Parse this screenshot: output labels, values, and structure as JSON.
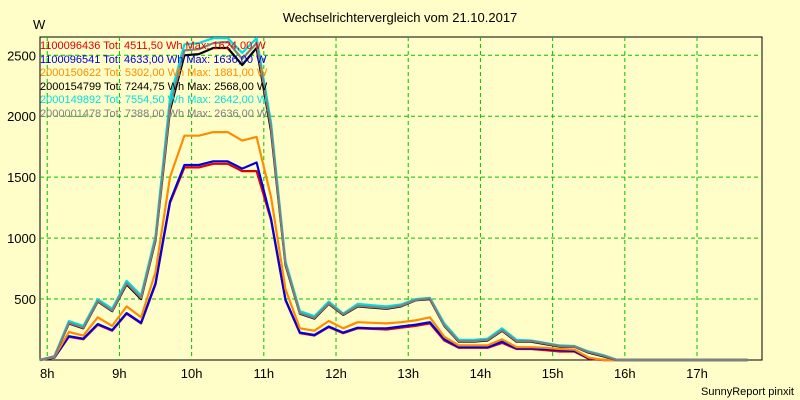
{
  "chart_data": {
    "type": "line",
    "title": "Wechselrichtervergleich vom 21.10.2017",
    "ylabel": "W",
    "xlabel": "",
    "ylim": [
      0,
      2650
    ],
    "xlim": [
      7.9,
      17.9
    ],
    "y_ticks": [
      500,
      1000,
      1500,
      2000,
      2500
    ],
    "x_ticks": [
      8,
      9,
      10,
      11,
      12,
      13,
      14,
      15,
      16,
      17
    ],
    "x_tick_labels": [
      "8h",
      "9h",
      "10h",
      "11h",
      "12h",
      "13h",
      "14h",
      "15h",
      "16h",
      "17h"
    ],
    "grid": true,
    "legend_position": "top-left",
    "x": [
      7.9,
      8.1,
      8.3,
      8.5,
      8.7,
      8.9,
      9.1,
      9.3,
      9.5,
      9.7,
      9.9,
      10.1,
      10.3,
      10.5,
      10.7,
      10.9,
      11.1,
      11.3,
      11.5,
      11.7,
      11.9,
      12.1,
      12.3,
      12.5,
      12.7,
      12.9,
      13.1,
      13.3,
      13.5,
      13.7,
      13.9,
      14.1,
      14.3,
      14.5,
      14.7,
      14.9,
      15.1,
      15.3,
      15.5,
      15.7,
      15.9,
      16.1,
      16.3,
      16.5,
      16.7,
      16.9,
      17.1,
      17.3,
      17.5,
      17.7
    ],
    "series": [
      {
        "name": "1100096436",
        "label": "1100096436 Tot: 4511,50 Wh Max: 1624,00 W",
        "color": "#e00000",
        "values": [
          0,
          20,
          190,
          170,
          290,
          240,
          380,
          300,
          620,
          1290,
          1580,
          1580,
          1610,
          1610,
          1550,
          1550,
          1150,
          490,
          220,
          200,
          270,
          220,
          260,
          255,
          250,
          265,
          280,
          300,
          160,
          100,
          100,
          100,
          140,
          90,
          90,
          80,
          70,
          70,
          10,
          0,
          0,
          0,
          0,
          0,
          0,
          0,
          0,
          0,
          0,
          0
        ]
      },
      {
        "name": "1100096541",
        "label": "1100096541 Tot: 4633,00 Wh Max: 1636,00 W",
        "color": "#0000e0",
        "values": [
          0,
          20,
          195,
          175,
          295,
          245,
          385,
          305,
          630,
          1300,
          1600,
          1600,
          1630,
          1630,
          1570,
          1620,
          1160,
          495,
          225,
          205,
          275,
          225,
          265,
          260,
          260,
          275,
          290,
          310,
          170,
          105,
          105,
          105,
          150,
          95,
          95,
          90,
          80,
          75,
          15,
          0,
          0,
          0,
          0,
          0,
          0,
          0,
          0,
          0,
          0,
          0
        ]
      },
      {
        "name": "2000150622",
        "label": "2000150622 Tot: 5302,00 Wh Max: 1881,00 W",
        "color": "#ff8c00",
        "values": [
          0,
          25,
          230,
          200,
          350,
          280,
          440,
          350,
          720,
          1500,
          1840,
          1840,
          1870,
          1870,
          1800,
          1830,
          1340,
          580,
          260,
          240,
          320,
          260,
          310,
          305,
          300,
          310,
          325,
          350,
          190,
          120,
          120,
          120,
          170,
          105,
          105,
          100,
          90,
          85,
          20,
          0,
          0,
          0,
          0,
          0,
          0,
          0,
          0,
          0,
          0,
          0
        ]
      },
      {
        "name": "2000154799",
        "label": "2000154799 Tot: 7244,75 Wh Max: 2568,00 W",
        "color": "#000000",
        "values": [
          0,
          30,
          300,
          260,
          480,
          400,
          620,
          500,
          980,
          2050,
          2500,
          2510,
          2560,
          2560,
          2420,
          2560,
          1880,
          780,
          380,
          340,
          460,
          370,
          440,
          430,
          420,
          440,
          490,
          500,
          280,
          150,
          150,
          160,
          240,
          150,
          150,
          130,
          110,
          110,
          60,
          30,
          0,
          0,
          0,
          0,
          0,
          0,
          0,
          0,
          0,
          0
        ]
      },
      {
        "name": "2000149892",
        "label": "2000149892 Tot: 7554,50 Wh Max: 2642,00 W",
        "color": "#00e0e0",
        "values": [
          0,
          30,
          320,
          280,
          500,
          420,
          650,
          530,
          1020,
          2150,
          2590,
          2600,
          2640,
          2640,
          2520,
          2640,
          1950,
          810,
          400,
          360,
          480,
          380,
          460,
          450,
          440,
          455,
          500,
          510,
          300,
          165,
          165,
          175,
          260,
          165,
          160,
          140,
          120,
          115,
          70,
          40,
          0,
          0,
          0,
          0,
          0,
          0,
          0,
          0,
          0,
          0
        ]
      },
      {
        "name": "2000001478",
        "label": "2000001478 Tot: 7388,00 Wh Max: 2636,00 W",
        "color": "#808080",
        "values": [
          0,
          28,
          305,
          265,
          485,
          405,
          630,
          510,
          990,
          2080,
          2540,
          2550,
          2600,
          2610,
          2470,
          2600,
          1910,
          790,
          385,
          345,
          465,
          375,
          445,
          435,
          425,
          445,
          492,
          505,
          285,
          155,
          155,
          165,
          245,
          155,
          155,
          135,
          115,
          112,
          65,
          35,
          0,
          0,
          0,
          0,
          0,
          0,
          0,
          0,
          0,
          0
        ]
      }
    ]
  },
  "footer": "SunnyReport pinxit"
}
